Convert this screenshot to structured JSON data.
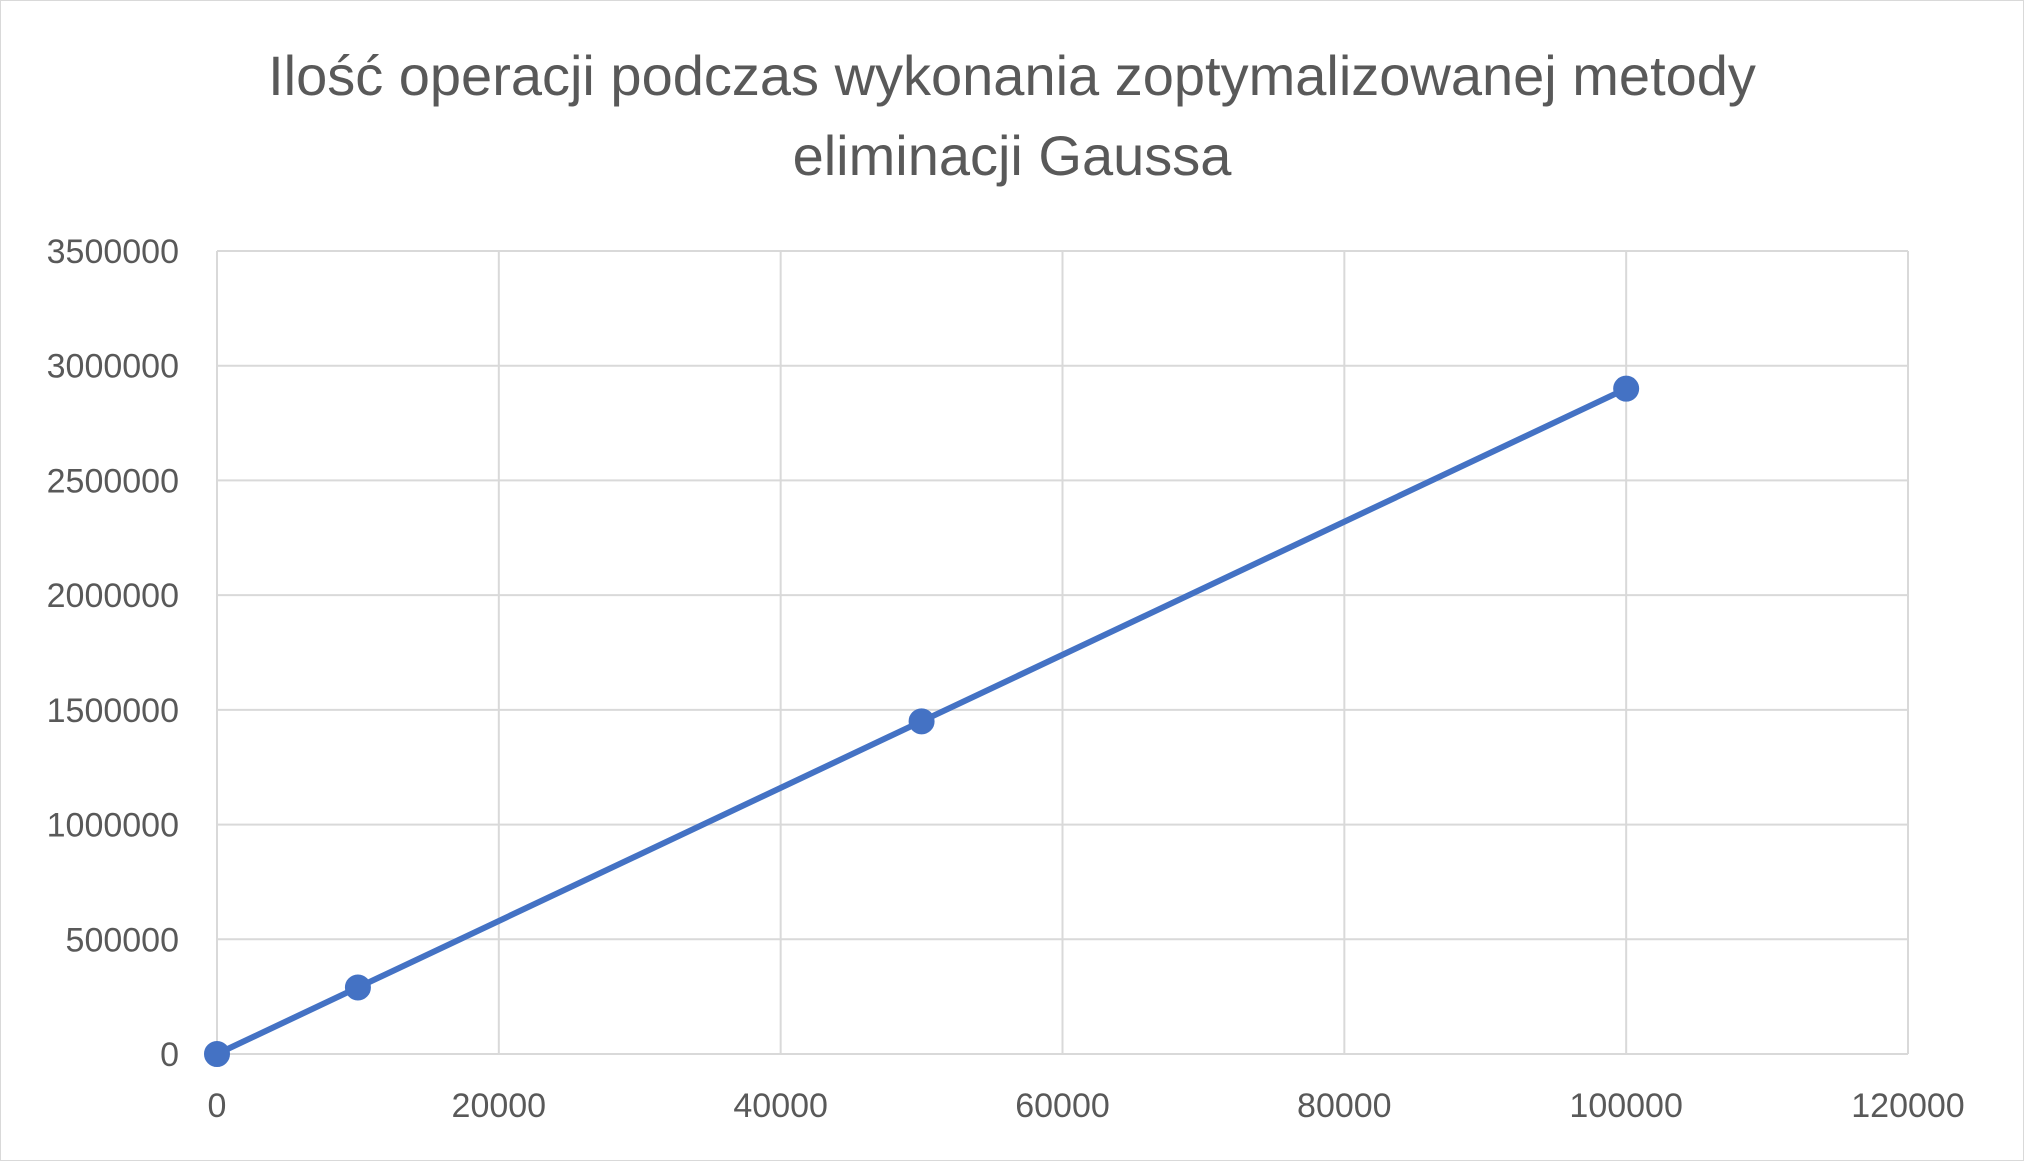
{
  "chart_data": {
    "type": "scatter",
    "title": "Ilość operacji podczas wykonania zoptymalizowanej metody eliminacji Gaussa",
    "title_lines": [
      "Ilość operacji podczas wykonania zoptymalizowanej metody",
      "eliminacji Gaussa"
    ],
    "xlabel": "",
    "ylabel": "",
    "xlim": [
      0,
      120000
    ],
    "ylim": [
      0,
      3500000
    ],
    "x_ticks": [
      "0",
      "20000",
      "40000",
      "60000",
      "80000",
      "100000",
      "120000"
    ],
    "y_ticks": [
      "0",
      "500000",
      "1000000",
      "1500000",
      "2000000",
      "2500000",
      "3000000",
      "3500000"
    ],
    "grid": true,
    "legend": "none",
    "series": [
      {
        "color": "#4472c4",
        "points": [
          {
            "x": 0,
            "y": 0
          },
          {
            "x": 10000,
            "y": 290000
          },
          {
            "x": 50000,
            "y": 1450000
          },
          {
            "x": 100000,
            "y": 2900000
          }
        ]
      }
    ]
  }
}
